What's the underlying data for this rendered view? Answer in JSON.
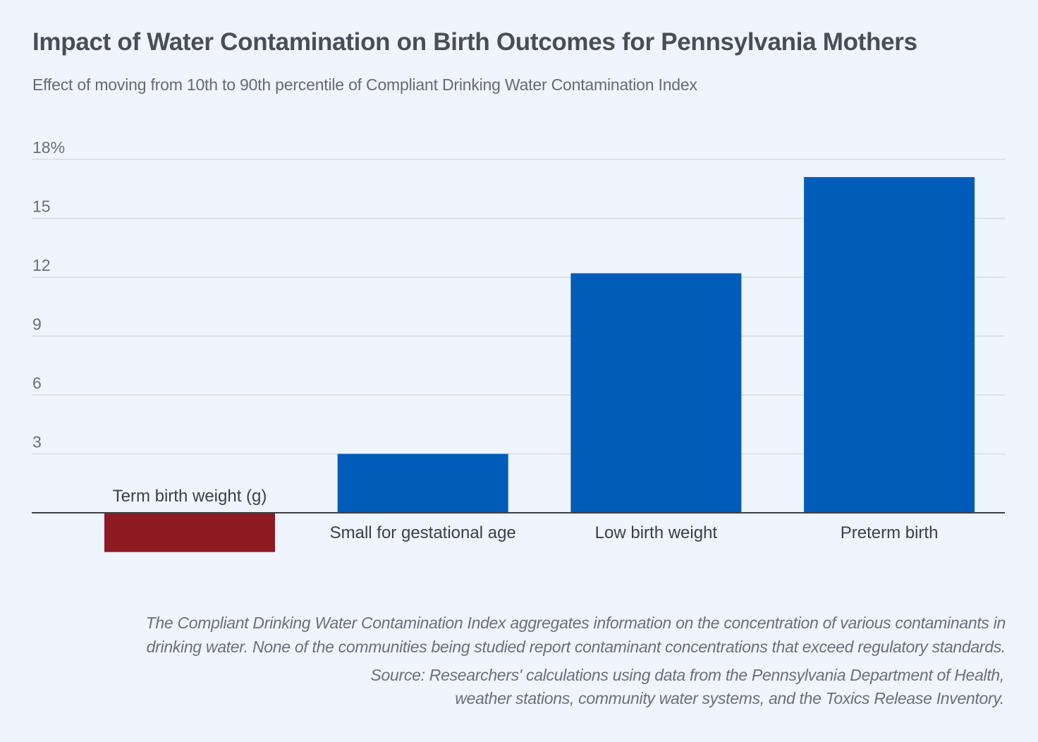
{
  "header": {
    "title": "Impact of Water Contamination on Birth Outcomes for Pennsylvania Mothers",
    "subtitle": "Effect of moving from 10th to 90th percentile of Compliant Drinking Water Contamination Index"
  },
  "footer": {
    "note_line1": "The Compliant Drinking Water Contamination Index aggregates information on the concentration of various contaminants in",
    "note_line2": "drinking water. None of the communities being studied report contaminant concentrations that exceed regulatory standards.",
    "source_line1": "Source: Researchers' calculations using data from the Pennsylvania Department of Health,",
    "source_line2": "weather stations, community water systems, and the Toxics Release Inventory."
  },
  "chart_data": {
    "type": "bar",
    "title": "Impact of Water Contamination on Birth Outcomes for Pennsylvania Mothers",
    "subtitle": "Effect of moving from 10th to 90th percentile of Compliant Drinking Water Contamination Index",
    "xlabel": "",
    "ylabel": "",
    "categories": [
      "Term birth weight (g)",
      "Small for gestational age",
      "Low birth weight",
      "Preterm birth"
    ],
    "values": [
      -2.0,
      3.0,
      12.2,
      17.1
    ],
    "ylim": [
      -2,
      18
    ],
    "yticks": [
      3,
      6,
      9,
      12,
      15,
      18
    ],
    "ytick_labels": [
      "3",
      "6",
      "9",
      "12",
      "15",
      "18%"
    ],
    "grid": true,
    "legend": "none",
    "colors": {
      "positive": "#005cb9",
      "negative": "#8f1b22",
      "grid": "#d3dbe6",
      "axis": "#3b3f45",
      "tick_text": "#6b6f77",
      "label_text": "#3b3f45"
    }
  }
}
